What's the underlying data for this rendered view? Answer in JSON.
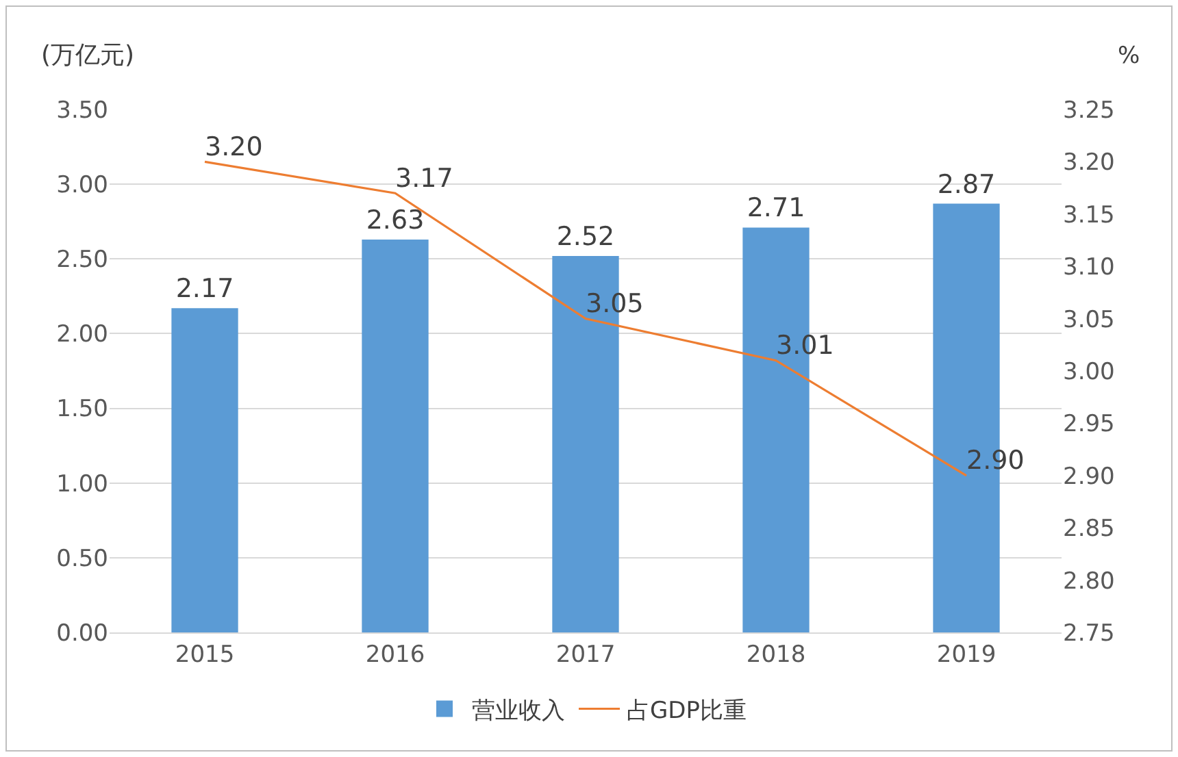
{
  "chart_data": {
    "type": "bar",
    "ylabel": "(万亿元)",
    "y2label": "%",
    "categories": [
      "2015",
      "2016",
      "2017",
      "2018",
      "2019"
    ],
    "series": [
      {
        "name": "营业收入",
        "color": "#5b9bd5",
        "values": [
          2.17,
          2.63,
          2.52,
          2.71,
          2.87
        ],
        "value_labels": [
          "2.17",
          "2.63",
          "2.52",
          "2.71",
          "2.87"
        ]
      },
      {
        "name": "占GDP比重",
        "type": "line",
        "axis": "y2",
        "color": "#ed7d31",
        "marker": "none",
        "line_style": "solid",
        "values": [
          3.2,
          3.17,
          3.05,
          3.01,
          2.9
        ],
        "value_labels": [
          "3.20",
          "3.17",
          "3.05",
          "3.01",
          "2.90"
        ]
      }
    ],
    "ylim": [
      0,
      3.5
    ],
    "yticks": [
      {
        "value": 0,
        "label": "0.00"
      },
      {
        "value": 0.5,
        "label": "0.50"
      },
      {
        "value": 1,
        "label": "1.00"
      },
      {
        "value": 1.5,
        "label": "1.50"
      },
      {
        "value": 2,
        "label": "2.00"
      },
      {
        "value": 2.5,
        "label": "2.50"
      },
      {
        "value": 3,
        "label": "3.00"
      },
      {
        "value": 3.5,
        "label": "3.50"
      }
    ],
    "y2lim": [
      2.75,
      3.25
    ],
    "y2ticks": [
      2.75,
      {
        "value": 2.8,
        "label": "2.80"
      },
      2.85,
      {
        "value": 2.9,
        "label": "2.90"
      },
      2.95,
      {
        "value": 3,
        "label": "3.00"
      },
      3.05,
      {
        "value": 3.1,
        "label": "3.10"
      },
      3.15,
      {
        "value": 3.2,
        "label": "3.20"
      },
      3.25
    ],
    "grid": "y",
    "legend": "bottom"
  }
}
